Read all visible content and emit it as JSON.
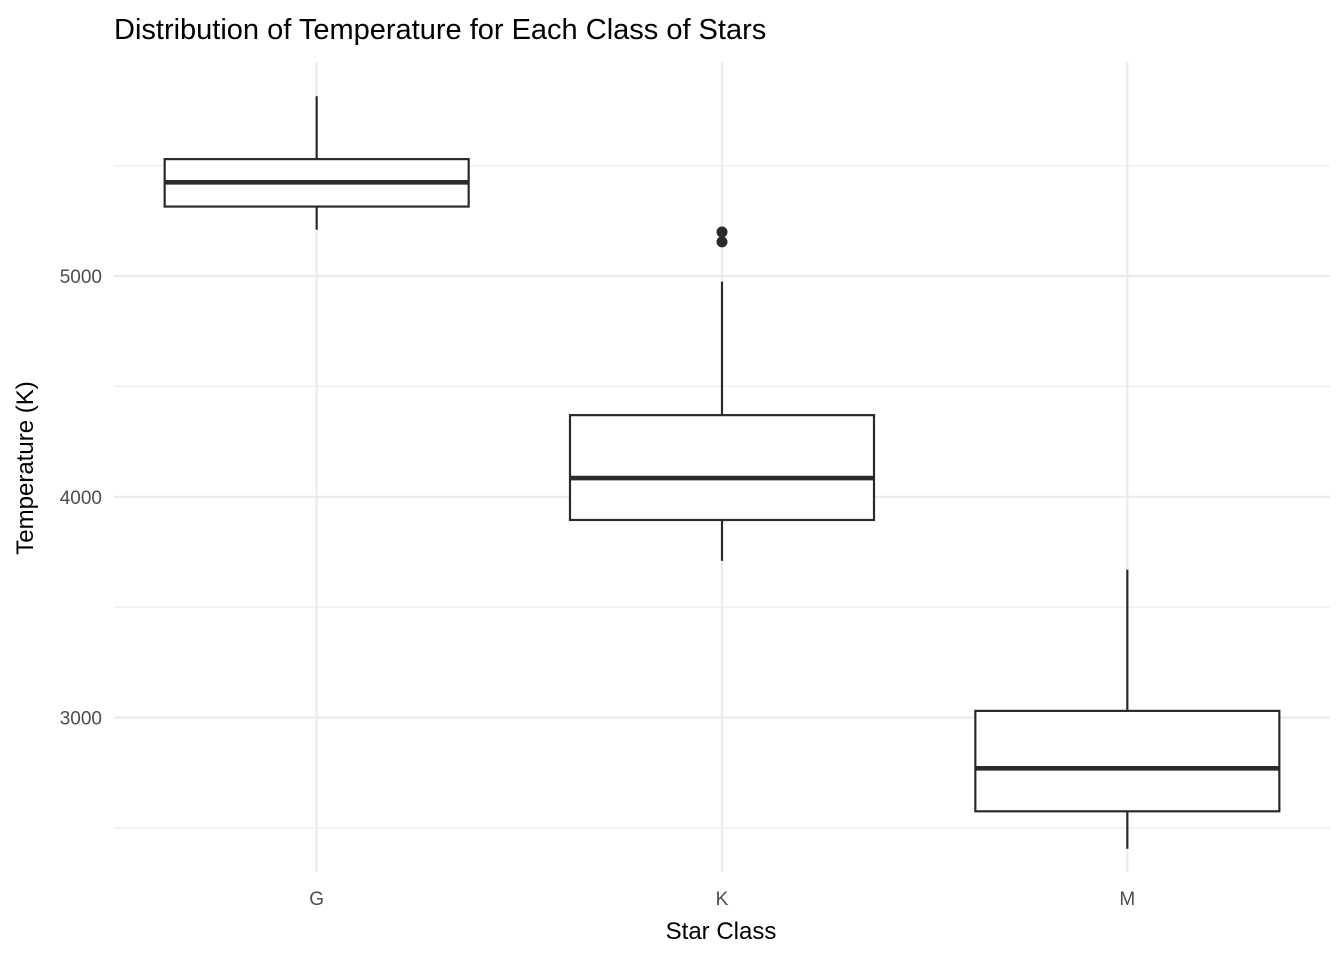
{
  "chart_data": {
    "type": "boxplot",
    "title": "Distribution of Temperature for Each Class of Stars",
    "xlabel": "Star Class",
    "ylabel": "Temperature (K)",
    "categories": [
      "G",
      "K",
      "M"
    ],
    "ylim": [
      2300,
      5970
    ],
    "yticks": [
      3000,
      4000,
      5000
    ],
    "grid": true,
    "legend": "none",
    "boxes": [
      {
        "category": "G",
        "whisker_low": 5210,
        "q1": 5315,
        "median": 5425,
        "q3": 5530,
        "whisker_high": 5815,
        "outliers": []
      },
      {
        "category": "K",
        "whisker_low": 3710,
        "q1": 3895,
        "median": 4085,
        "q3": 4370,
        "whisker_high": 4975,
        "outliers": [
          5155,
          5200
        ]
      },
      {
        "category": "M",
        "whisker_low": 2405,
        "q1": 2575,
        "median": 2770,
        "q3": 3030,
        "whisker_high": 3670,
        "outliers": []
      }
    ],
    "colors": {
      "box_stroke": "#2b2b2b",
      "box_fill": "#ffffff",
      "grid": "#ebebeb",
      "tick_text": "#4d4d4d",
      "text": "#000000"
    }
  }
}
